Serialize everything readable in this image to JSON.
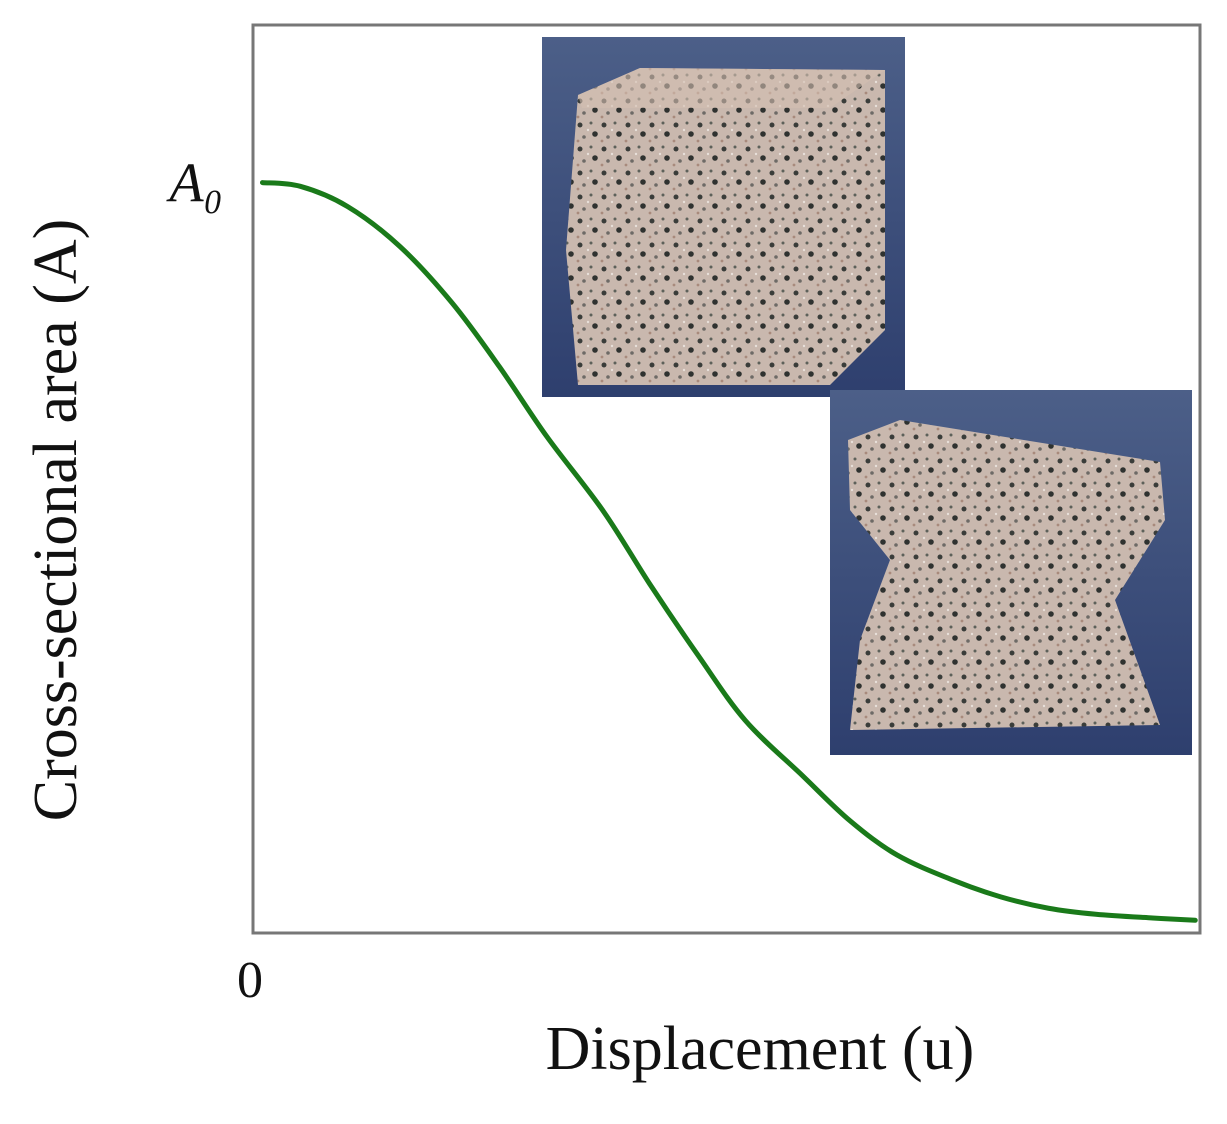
{
  "chart_data": {
    "type": "line",
    "x_label": "Displacement (u)",
    "y_label": "Cross-sectional area (A)",
    "xlim": [
      0,
      1
    ],
    "ylim": [
      0,
      1.21
    ],
    "xticks": [
      0
    ],
    "yticks": [
      {
        "value": 1,
        "label": "A₀"
      }
    ],
    "x": [
      0.01,
      0.05,
      0.1,
      0.155,
      0.21,
      0.26,
      0.31,
      0.37,
      0.42,
      0.47,
      0.52,
      0.58,
      0.63,
      0.68,
      0.74,
      0.79,
      0.84,
      0.89,
      0.95,
      0.995
    ],
    "series": [
      {
        "color": "#1a7a1a",
        "values": [
          1.0,
          0.995,
          0.968,
          0.915,
          0.84,
          0.755,
          0.662,
          0.562,
          0.463,
          0.37,
          0.283,
          0.21,
          0.15,
          0.104,
          0.07,
          0.048,
          0.033,
          0.025,
          0.02,
          0.017
        ]
      }
    ]
  }
}
